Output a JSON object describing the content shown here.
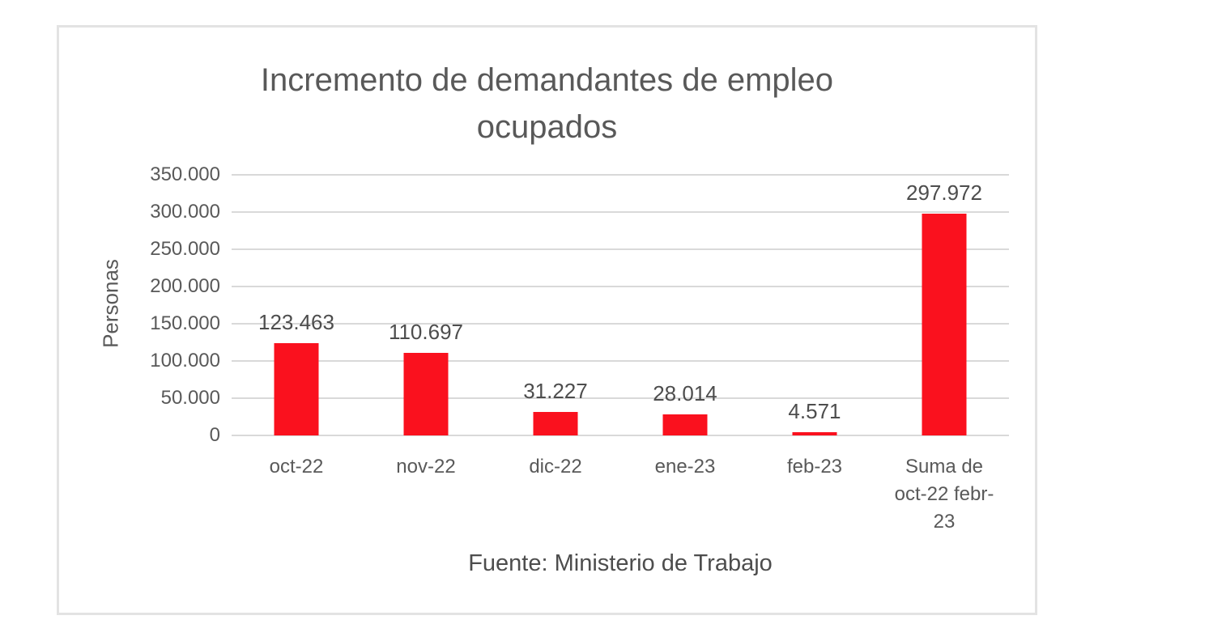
{
  "chart": {
    "title_lines": [
      "Incremento de demandantes de empleo",
      "ocupados"
    ],
    "y_axis_title": "Personas",
    "source_note": "Fuente: Ministerio de Trabajo"
  },
  "chart_data": {
    "type": "bar",
    "title": "Incremento de demandantes de empleo ocupados",
    "xlabel": "",
    "ylabel": "Personas",
    "categories": [
      "oct-22",
      "nov-22",
      "dic-22",
      "ene-23",
      "feb-23",
      "Suma de oct-22 febr-23"
    ],
    "category_display": [
      "oct-22",
      "nov-22",
      "dic-22",
      "ene-23",
      "feb-23",
      "Suma de\noct-22 febr-\n23"
    ],
    "values": [
      123463,
      110697,
      31227,
      28014,
      4571,
      297972
    ],
    "value_labels": [
      "123.463",
      "110.697",
      "31.227",
      "28.014",
      "4.571",
      "297.972"
    ],
    "ylim": [
      0,
      350000
    ],
    "yticks": [
      {
        "value": 0,
        "label": "0"
      },
      {
        "value": 50000,
        "label": "50.000"
      },
      {
        "value": 100000,
        "label": "100.000"
      },
      {
        "value": 150000,
        "label": "150.000"
      },
      {
        "value": 200000,
        "label": "200.000"
      },
      {
        "value": 250000,
        "label": "250.000"
      },
      {
        "value": 300000,
        "label": "300.000"
      },
      {
        "value": 350000,
        "label": "350.000"
      }
    ],
    "grid": true,
    "legend": "none",
    "bar_color": "#fa111e",
    "gridline_color": "#d9d9d9",
    "text_color": "#595959",
    "annotation": "Fuente: Ministerio de Trabajo"
  }
}
